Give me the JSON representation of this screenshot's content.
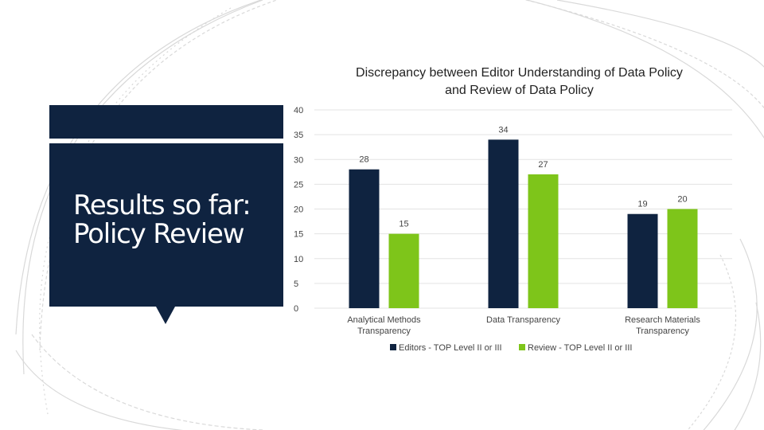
{
  "slide": {
    "title": "Results so far:\nPolicy Review"
  },
  "colors": {
    "panel": "#0f2340",
    "editors": "#0f2340",
    "review": "#7ec51a",
    "arcs": "#d9d9d9",
    "grid": "#e3e3e3"
  },
  "chart_data": {
    "type": "bar",
    "title": "Discrepancy between Editor Understanding of Data Policy and Review of Data Policy",
    "categories": [
      "Analytical Methods Transparency",
      "Data Transparency",
      "Research Materials Transparency"
    ],
    "series": [
      {
        "name": "Editors - TOP Level II or III",
        "values": [
          28,
          34,
          19
        ],
        "color": "#0f2340"
      },
      {
        "name": "Review - TOP Level II or III",
        "values": [
          15,
          27,
          20
        ],
        "color": "#7ec51a"
      }
    ],
    "ylim": [
      0,
      40
    ],
    "yticks": [
      0,
      5,
      10,
      15,
      20,
      25,
      30,
      35,
      40
    ],
    "grid": true,
    "data_labels": true,
    "legend": "bottom"
  }
}
